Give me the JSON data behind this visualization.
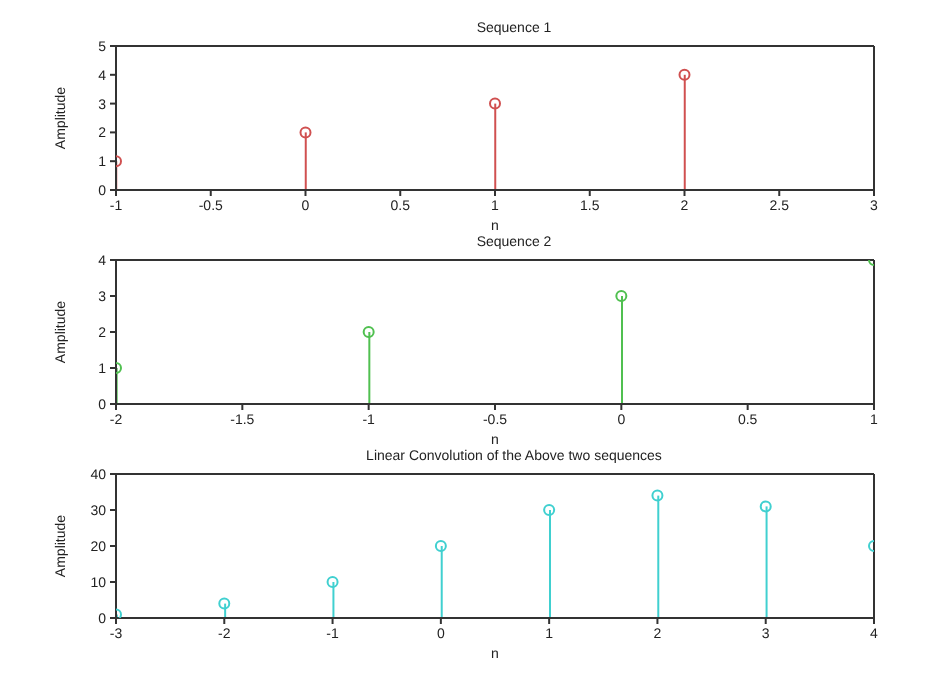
{
  "chart_data": [
    {
      "type": "lollipop",
      "title": "Sequence 1",
      "xlabel": "n",
      "ylabel": "Amplitude",
      "x": [
        -1,
        0,
        1,
        2
      ],
      "values": [
        1,
        2,
        3,
        4
      ],
      "color": "#d05050",
      "marker": "circle",
      "xlim": [
        -1,
        3
      ],
      "xticks": [
        -1,
        -0.5,
        0,
        0.5,
        1,
        1.5,
        2,
        2.5,
        3
      ],
      "ylim": [
        0,
        5
      ],
      "yticks": [
        0,
        1,
        2,
        3,
        4,
        5
      ]
    },
    {
      "type": "lollipop",
      "title": "Sequence 2",
      "xlabel": "n",
      "ylabel": "Amplitude",
      "x": [
        -2,
        -1,
        0,
        1
      ],
      "values": [
        1,
        2,
        3,
        4
      ],
      "color": "#50c050",
      "marker": "circle",
      "xlim": [
        -2,
        1
      ],
      "xticks": [
        -2,
        -1.5,
        -1,
        -0.5,
        0,
        0.5,
        1
      ],
      "ylim": [
        0,
        4
      ],
      "yticks": [
        0,
        1,
        2,
        3,
        4
      ]
    },
    {
      "type": "lollipop",
      "title": "Linear Convolution of the Above two sequences",
      "xlabel": "n",
      "ylabel": "Amplitude",
      "x": [
        -3,
        -2,
        -1,
        0,
        1,
        2,
        3,
        4
      ],
      "values": [
        1,
        4,
        10,
        20,
        30,
        34,
        31,
        20
      ],
      "color": "#40d0d0",
      "marker": "circle",
      "xlim": [
        -3,
        4
      ],
      "xticks": [
        -3,
        -2,
        -1,
        0,
        1,
        2,
        3,
        4
      ],
      "ylim": [
        0,
        40
      ],
      "yticks": [
        0,
        10,
        20,
        30,
        40
      ]
    }
  ]
}
